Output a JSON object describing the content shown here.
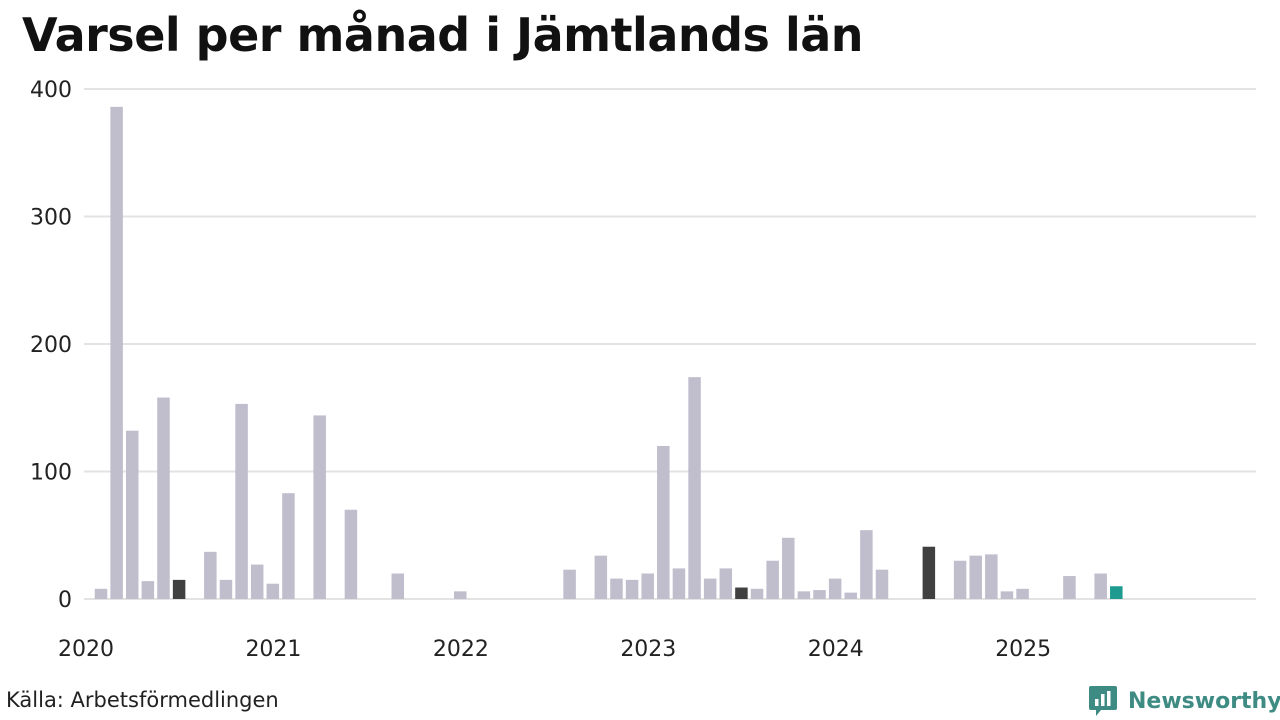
{
  "chart_data": {
    "type": "bar",
    "title": "Varsel per månad i Jämtlands län",
    "ylim": [
      0,
      400
    ],
    "yticks": [
      0,
      100,
      200,
      300,
      400
    ],
    "xticks": [
      "2020",
      "2021",
      "2022",
      "2023",
      "2024",
      "2025"
    ],
    "grid": true,
    "months": [
      "2020-01",
      "2020-02",
      "2020-03",
      "2020-04",
      "2020-05",
      "2020-06",
      "2020-07",
      "2020-08",
      "2020-09",
      "2020-10",
      "2020-11",
      "2020-12",
      "2021-01",
      "2021-02",
      "2021-03",
      "2021-04",
      "2021-05",
      "2021-06",
      "2021-07",
      "2021-08",
      "2021-09",
      "2021-10",
      "2021-11",
      "2021-12",
      "2022-01",
      "2022-02",
      "2022-03",
      "2022-04",
      "2022-05",
      "2022-06",
      "2022-07",
      "2022-08",
      "2022-09",
      "2022-10",
      "2022-11",
      "2022-12",
      "2023-01",
      "2023-02",
      "2023-03",
      "2023-04",
      "2023-05",
      "2023-06",
      "2023-07",
      "2023-08",
      "2023-09",
      "2023-10",
      "2023-11",
      "2023-12",
      "2024-01",
      "2024-02",
      "2024-03",
      "2024-04",
      "2024-05",
      "2024-06",
      "2024-07",
      "2024-08",
      "2024-09",
      "2024-10",
      "2024-11",
      "2024-12",
      "2025-01",
      "2025-02",
      "2025-03",
      "2025-04",
      "2025-05",
      "2025-06",
      "2025-07",
      "2025-08",
      "2025-09",
      "2025-10",
      "2025-11",
      "2025-12"
    ],
    "values": [
      8,
      386,
      132,
      14,
      158,
      15,
      0,
      37,
      15,
      153,
      27,
      12,
      83,
      0,
      144,
      0,
      70,
      0,
      0,
      20,
      0,
      0,
      0,
      6,
      0,
      0,
      0,
      0,
      0,
      0,
      23,
      0,
      34,
      16,
      15,
      20,
      120,
      24,
      174,
      16,
      24,
      9,
      8,
      30,
      48,
      6,
      7,
      16,
      5,
      54,
      23,
      0,
      0,
      41,
      0,
      30,
      34,
      35,
      6,
      8,
      0,
      0,
      18,
      0,
      20,
      10,
      null,
      null,
      null,
      null,
      null,
      null
    ],
    "highlight_dark_months": [
      "2020-06",
      "2023-06",
      "2024-06"
    ],
    "highlight_current_month": "2025-06",
    "colors": {
      "bar": "#c0bdcc",
      "dark": "#404040",
      "current": "#1f9a8f",
      "grid": "#e3e3e3",
      "axis_text": "#222222"
    }
  },
  "source": "Källa: Arbetsförmedlingen",
  "brand": "Newsworthy"
}
